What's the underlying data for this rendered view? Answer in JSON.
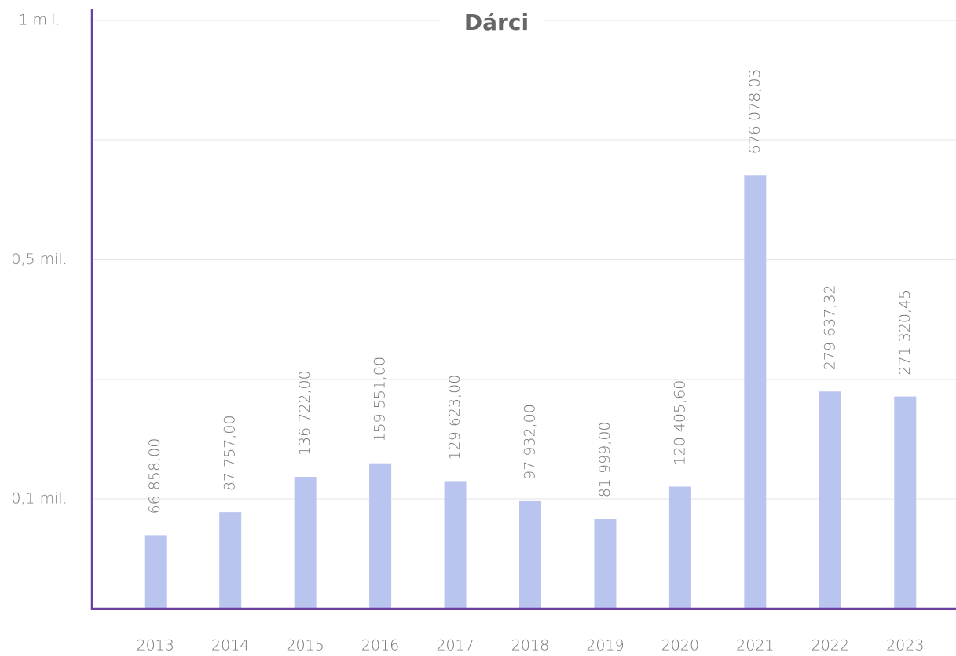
{
  "chart_data": {
    "type": "bar",
    "title": "Dárci",
    "categories": [
      "2013",
      "2014",
      "2015",
      "2016",
      "2017",
      "2018",
      "2019",
      "2020",
      "2021",
      "2022",
      "2023"
    ],
    "values": [
      66858,
      87757,
      136722,
      159551,
      129623,
      97932,
      81999,
      120405.6,
      676078.03,
      279637.32,
      271320.45
    ],
    "value_labels": [
      "66 858,00",
      "87 757,00",
      "136 722,00",
      "159 551,00",
      "129 623,00",
      "97 932,00",
      "81 999,00",
      "120 405,60",
      "676 078,03",
      "279 637,32",
      "271 320,45"
    ],
    "color": "#b9c4ef",
    "ylim": [
      0,
      1000000
    ],
    "yticks": [
      {
        "value": 100000,
        "label": "0,1 mil."
      },
      {
        "value": 500000,
        "label": "0,5 mil."
      },
      {
        "value": 1000000,
        "label": "1 mil."
      }
    ],
    "grid": true
  }
}
